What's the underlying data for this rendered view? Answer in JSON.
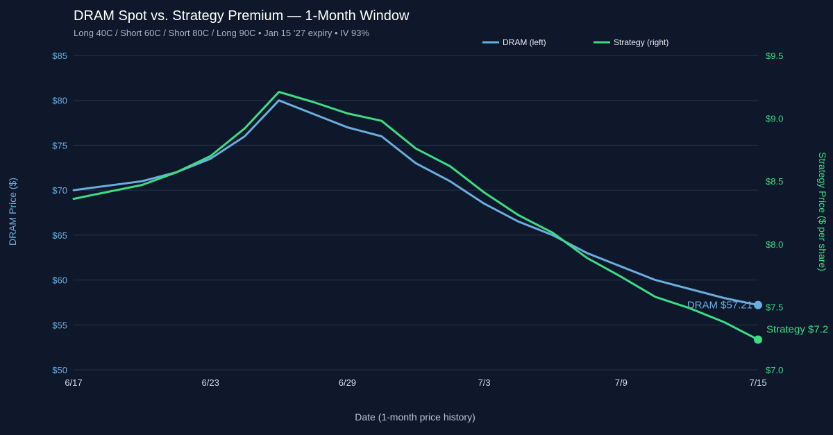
{
  "chart_data": {
    "type": "line",
    "title": "DRAM Spot vs. Strategy Premium — 1-Month Window",
    "subtitle": "Long 40C / Short 60C / Short 80C / Long 90C • Jan 15 ’27 expiry • IV 93%",
    "xlabel": "Date (1-month price history)",
    "ylabel_left": "DRAM Price ($)",
    "ylabel_right": "Strategy Price ($ per share)",
    "x_dates": [
      "2025-06-17",
      "2025-06-18",
      "2025-06-19",
      "2025-06-20",
      "2025-06-21",
      "2025-06-22",
      "2025-06-23",
      "2025-06-24",
      "2025-06-25",
      "2025-06-26",
      "2025-06-27",
      "2025-06-28",
      "2025-06-29",
      "2025-06-30",
      "2025-07-01",
      "2025-07-02",
      "2025-07-03",
      "2025-07-04",
      "2025-07-05",
      "2025-07-06",
      "2025-07-07",
      "2025-07-08",
      "2025-07-09",
      "2025-07-10",
      "2025-07-11",
      "2025-07-12",
      "2025-07-13",
      "2025-07-14",
      "2025-07-15"
    ],
    "x_ticks": [
      "6/17",
      "6/23",
      "6/29",
      "7/3",
      "7/9",
      "7/15"
    ],
    "ylim_left": [
      50,
      85
    ],
    "yticks_left": [
      "$50",
      "$55",
      "$60",
      "$65",
      "$70",
      "$75",
      "$80",
      "$85"
    ],
    "ylim_right": [
      7.0,
      9.5
    ],
    "yticks_right": [
      "$7.0",
      "$7.5",
      "$8.0",
      "$8.5",
      "$9.0",
      "$9.5"
    ],
    "grid": true,
    "legend_position": "top-right",
    "series": [
      {
        "name": "DRAM (left)",
        "axis": "left",
        "color": "#6aaee0",
        "points": [
          {
            "x": "2025-06-17",
            "y": 70.0
          },
          {
            "x": "2025-06-21",
            "y": 71.0
          },
          {
            "x": "2025-06-23",
            "y": 72.0
          },
          {
            "x": "2025-06-25",
            "y": 73.5
          },
          {
            "x": "2025-06-27",
            "y": 76.0
          },
          {
            "x": "2025-06-29",
            "y": 80.0
          },
          {
            "x": "2025-07-01",
            "y": 78.5
          },
          {
            "x": "2025-07-03",
            "y": 77.0
          },
          {
            "x": "2025-07-05",
            "y": 76.0
          },
          {
            "x": "2025-07-07",
            "y": 73.0
          },
          {
            "x": "2025-07-09",
            "y": 71.0
          },
          {
            "x": "2025-07-11",
            "y": 68.5
          },
          {
            "x": "2025-07-13",
            "y": 66.5
          },
          {
            "x": "2025-07-15",
            "y": 65.0
          },
          {
            "x": "2025-07-17",
            "y": 63.0
          },
          {
            "x": "2025-07-19",
            "y": 61.5
          },
          {
            "x": "2025-07-21",
            "y": 60.0
          },
          {
            "x": "2025-07-23",
            "y": 59.0
          },
          {
            "x": "2025-07-25",
            "y": 58.0
          },
          {
            "x": "2025-07-27",
            "y": 57.21
          }
        ],
        "end_label": "DRAM $57.21"
      },
      {
        "name": "Strategy (right)",
        "axis": "right",
        "color": "#3ddc84",
        "points": [
          {
            "x": "2025-06-17",
            "y": 8.36
          },
          {
            "x": "2025-06-21",
            "y": 8.47
          },
          {
            "x": "2025-06-23",
            "y": 8.57
          },
          {
            "x": "2025-06-25",
            "y": 8.7
          },
          {
            "x": "2025-06-27",
            "y": 8.92
          },
          {
            "x": "2025-06-29",
            "y": 9.21
          },
          {
            "x": "2025-07-01",
            "y": 9.13
          },
          {
            "x": "2025-07-03",
            "y": 9.04
          },
          {
            "x": "2025-07-05",
            "y": 8.98
          },
          {
            "x": "2025-07-07",
            "y": 8.76
          },
          {
            "x": "2025-07-09",
            "y": 8.62
          },
          {
            "x": "2025-07-11",
            "y": 8.41
          },
          {
            "x": "2025-07-13",
            "y": 8.23
          },
          {
            "x": "2025-07-15",
            "y": 8.09
          },
          {
            "x": "2025-07-17",
            "y": 7.89
          },
          {
            "x": "2025-07-19",
            "y": 7.74
          },
          {
            "x": "2025-07-21",
            "y": 7.58
          },
          {
            "x": "2025-07-23",
            "y": 7.49
          },
          {
            "x": "2025-07-25",
            "y": 7.38
          },
          {
            "x": "2025-07-27",
            "y": 7.24
          }
        ],
        "end_label": "Strategy $7.2"
      }
    ]
  }
}
